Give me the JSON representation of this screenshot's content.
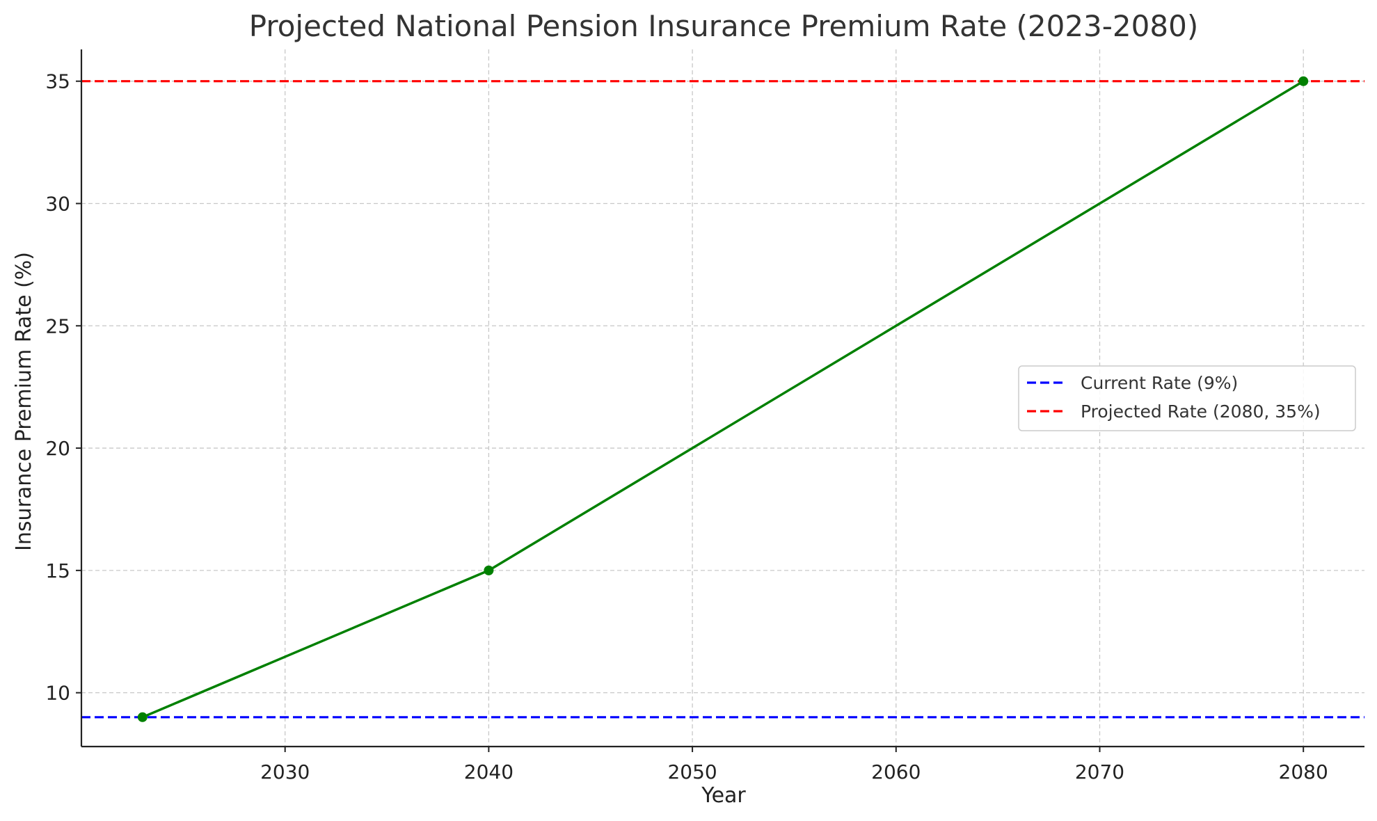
{
  "chart_data": {
    "type": "line",
    "title": "Projected National Pension Insurance Premium Rate (2023-2080)",
    "xlabel": "Year",
    "ylabel": "Insurance Premium Rate (%)",
    "xlim": [
      2020,
      2083
    ],
    "ylim": [
      7.8,
      36.3
    ],
    "xticks": [
      2030,
      2040,
      2050,
      2060,
      2070,
      2080
    ],
    "yticks": [
      10,
      15,
      20,
      25,
      30,
      35
    ],
    "grid": true,
    "series": [
      {
        "color": "#008000",
        "marker": "circle",
        "points": [
          {
            "x": 2023,
            "y": 9
          },
          {
            "x": 2040,
            "y": 15
          },
          {
            "x": 2080,
            "y": 35
          }
        ]
      }
    ],
    "reference_lines": [
      {
        "name": "Current Rate (9%)",
        "y": 9,
        "color": "#0000ff",
        "style": "dashed"
      },
      {
        "name": "Projected Rate (2080, 35%)",
        "y": 35,
        "color": "#ff0000",
        "style": "dashed"
      }
    ],
    "legend": {
      "position": "center-right",
      "entries": [
        "Current Rate (9%)",
        "Projected Rate (2080, 35%)"
      ]
    }
  }
}
